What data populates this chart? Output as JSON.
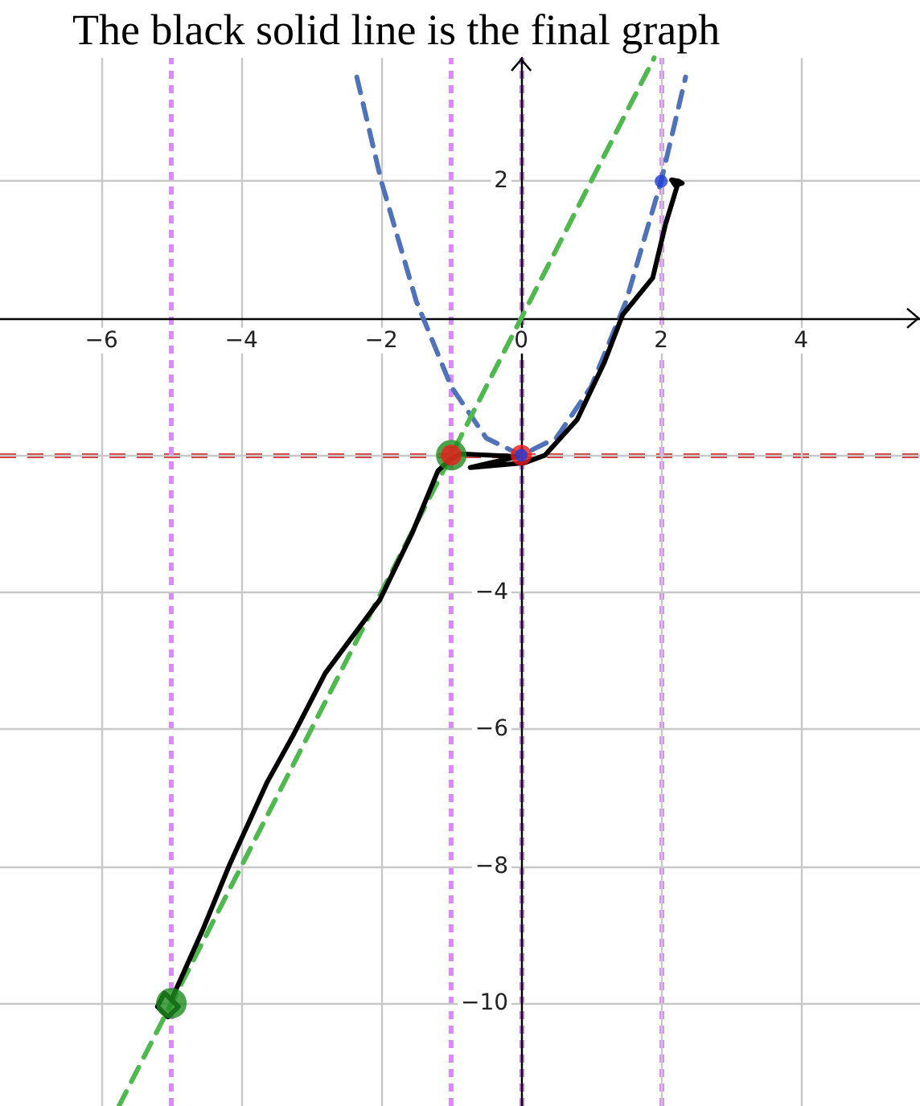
{
  "chart_data": {
    "type": "line",
    "title": "The black solid line is the final graph",
    "xlim": [
      -7.45,
      5.7
    ],
    "ylim": [
      -11.5,
      3.8
    ],
    "xticks": [
      -6,
      -4,
      -2,
      0,
      2,
      4
    ],
    "yticks": [
      -10,
      -8,
      -6,
      -4,
      {
        "value": -2,
        "label": null
      },
      2
    ],
    "grid": true,
    "marker": "none",
    "ref_lines": [
      {
        "axis": "y",
        "value": -2,
        "color": "#d93b3b",
        "line_style": "dashed"
      },
      {
        "axis": "x",
        "value": -5,
        "color": "#d98cf5",
        "line_style": "dotted"
      },
      {
        "axis": "x",
        "value": -1,
        "color": "#d98cf5",
        "line_style": "dotted"
      },
      {
        "axis": "x",
        "value": 0,
        "color": "#c07be0",
        "line_style": "dotted"
      },
      {
        "axis": "x",
        "value": 2,
        "color": "#d98cf5",
        "line_style": "dotted"
      }
    ],
    "series": [
      {
        "color": "#4f72b8",
        "line_style": "dashed",
        "x": [
          -2.35,
          -2,
          -1.5,
          -1,
          -0.5,
          0,
          0.5,
          1,
          1.5,
          2,
          2.35
        ],
        "values": [
          3.52,
          2,
          0.25,
          -1,
          -1.75,
          -2,
          -1.75,
          -1,
          0.25,
          2,
          3.52
        ]
      },
      {
        "color": "#4fb84f",
        "line_style": "dashed",
        "x": [
          -5.75,
          1.9
        ],
        "values": [
          -11.5,
          3.8
        ]
      },
      {
        "color": "#000000",
        "line_style": "solid",
        "x": [
          -5.0,
          -5.1,
          -5.2,
          -5.05,
          -4.9,
          -5.0,
          -4.54,
          -4.17,
          -3.63,
          -3.26,
          -2.8,
          -2.02,
          -1.56,
          -1.19,
          -1.03,
          -0.87,
          -0.05,
          -0.73,
          0.05,
          0.34,
          0.8,
          1.19,
          1.45,
          1.88,
          2.06,
          2.25,
          2.3,
          2.2,
          2.15,
          2.25
        ],
        "values": [
          -9.95,
          -9.85,
          -10.05,
          -10.2,
          -10.05,
          -9.95,
          -8.9,
          -7.98,
          -6.77,
          -6.09,
          -5.18,
          -4.11,
          -3.14,
          -2.23,
          -2.07,
          -1.98,
          -2.02,
          -2.18,
          -2.11,
          -2.0,
          -1.48,
          -0.64,
          0.05,
          0.59,
          1.36,
          2.0,
          1.97,
          1.94,
          2.02,
          2.0
        ]
      },
      {
        "type": "scatter",
        "marker": "circle",
        "color": "#1e8c1e",
        "x": [
          -5,
          -1
        ],
        "values": [
          -10,
          -2
        ]
      },
      {
        "type": "scatter",
        "marker": "circle",
        "color": "#ee1c1c",
        "x": [
          -1,
          0
        ],
        "values": [
          -2,
          -2
        ]
      },
      {
        "type": "scatter",
        "marker": "circle",
        "color": "#1f3fd6",
        "x": [
          0,
          2
        ],
        "values": [
          -2,
          2
        ]
      }
    ]
  }
}
